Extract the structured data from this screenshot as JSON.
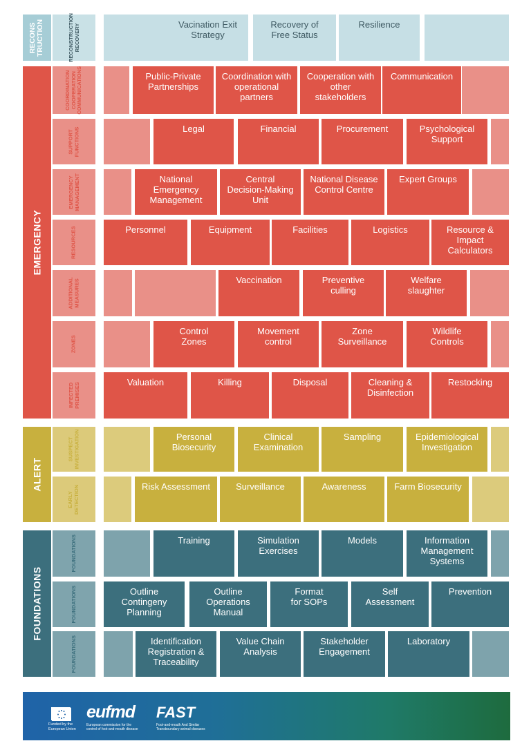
{
  "colors": {
    "recon": "#a6cdd6",
    "recon_sub": "#c9e1e6",
    "recon_cell": "#c6dfe5",
    "recon_text": "#3f5a63",
    "emergency": "#df5548",
    "emergency_sub": "#e99088",
    "emergency_pad": "#e99088",
    "alert": "#c8b03e",
    "alert_sub": "#dcca7a",
    "alert_pad": "#dccb7c",
    "foundations": "#3c6f7d",
    "foundations_sub": "#7fa4ad",
    "foundations_pad": "#7ea3ac",
    "cell_text": "#ffffff"
  },
  "sections": {
    "recon": "RECONS\nTRUCTION",
    "emergency": "EMERGENCY",
    "alert": "ALERT",
    "foundations": "FOUNDATIONS"
  },
  "rows": [
    {
      "key": "recon",
      "label": "RECONSTRUCTION\nRECOVERY",
      "cells": [
        "Vacination Exit\nStrategy",
        "Recovery of\nFree Status",
        "Resilience"
      ]
    },
    {
      "key": "coord",
      "label": "COORDINATION\nCOOPERATION\nCOMMUNICATIONS",
      "cells": [
        "Public-Private\nPartnerships",
        "Coordination with\noperational\npartners",
        "Cooperation with\nother\nstakeholders",
        "Communication"
      ]
    },
    {
      "key": "support",
      "label": "SUPPORT\nFUNCTIONS",
      "cells": [
        "Legal",
        "Financial",
        "Procurement",
        "Psychological\nSupport"
      ]
    },
    {
      "key": "emgmt",
      "label": "EMERGENCY\nMANAGEMENT",
      "cells": [
        "National\nEmergency\nManagement",
        "Central\nDecision-Making\nUnit",
        "National Disease\nControl Centre",
        "Expert Groups"
      ]
    },
    {
      "key": "resources",
      "label": "RESOURCES",
      "cells": [
        "Personnel",
        "Equipment",
        "Facilities",
        "Logistics",
        "Resource &\nImpact\nCalculators"
      ]
    },
    {
      "key": "additional",
      "label": "ADDITIONAL\nMEASURES",
      "cells": [
        "Vaccination",
        "Preventive\nculling",
        "Welfare\nslaughter"
      ]
    },
    {
      "key": "zones",
      "label": "ZONES",
      "cells": [
        "Control\nZones",
        "Movement\ncontrol",
        "Zone\nSurveillance",
        "Wildlife\nControls"
      ]
    },
    {
      "key": "infected",
      "label": "INFECTED\nPREMISES",
      "cells": [
        "Valuation",
        "Killing",
        "Disposal",
        "Cleaning &\nDisinfection",
        "Restocking"
      ]
    },
    {
      "key": "suspect",
      "label": "SUSPECT\nINVESTIGATION",
      "cells": [
        "Personal\nBiosecurity",
        "Clinical\nExamination",
        "Sampling",
        "Epidemiological\nInvestigation"
      ]
    },
    {
      "key": "early",
      "label": "EARLY\nDETECTION",
      "cells": [
        "Risk Assessment",
        "Surveillance",
        "Awareness",
        "Farm Biosecurity"
      ]
    },
    {
      "key": "found1",
      "label": "FOUNDATIONS",
      "cells": [
        "Training",
        "Simulation\nExercises",
        "Models",
        "Information\nManagement\nSystems"
      ]
    },
    {
      "key": "found2",
      "label": "FOUNDATIONS",
      "cells": [
        "Outline\nContingeny\nPlanning",
        "Outline\nOperations\nManual",
        "Format\nfor SOPs",
        "Self\nAssessment",
        "Prevention"
      ]
    },
    {
      "key": "found3",
      "label": "FOUNDATIONS",
      "cells": [
        "Identification\nRegistration &\nTraceability",
        "Value Chain\nAnalysis",
        "Stakeholder\nEngagement",
        "Laboratory"
      ]
    }
  ],
  "footer": {
    "eu_caption": "Funded by the\nEuropean Union",
    "eufmd_logo": "eufmd",
    "eufmd_caption": "European commission for the\ncontrol of foot-and-mouth disease",
    "fast_logo": "FAST",
    "fast_caption": "Foot-and-mouth And Similar\nTransboundary animal diseases"
  }
}
